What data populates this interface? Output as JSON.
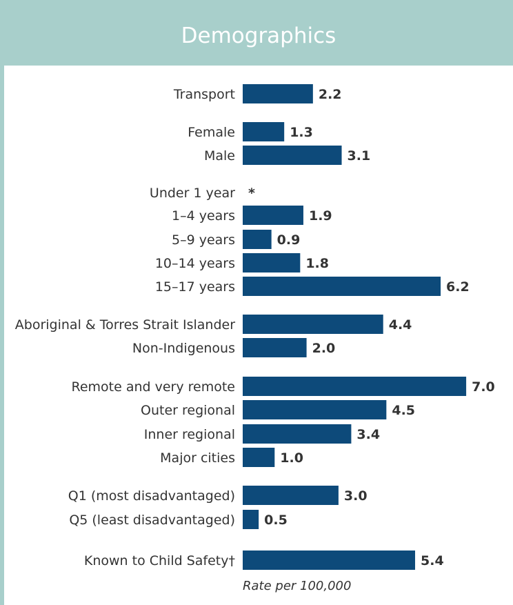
{
  "header": {
    "title": "Demographics"
  },
  "chart_data": {
    "type": "bar",
    "orientation": "horizontal",
    "title": "Demographics",
    "xlabel": "Rate per 100,000",
    "xlim": [
      0,
      7.0
    ],
    "grid": false,
    "bar_color": "#0d4a7a",
    "categories": [
      "Transport",
      "Female",
      "Male",
      "Under 1 year",
      "1–4 years",
      "5–9 years",
      "10–14 years",
      "15–17 years",
      "Aboriginal & Torres Strait Islander",
      "Non-Indigenous",
      "Remote and very remote",
      "Outer regional",
      "Inner regional",
      "Major cities",
      "Q1 (most disadvantaged)",
      "Q5 (least disadvantaged)",
      "Known to Child Safety†"
    ],
    "values": [
      2.2,
      1.3,
      3.1,
      null,
      1.9,
      0.9,
      1.8,
      6.2,
      4.4,
      2.0,
      7.0,
      4.5,
      3.4,
      1.0,
      3.0,
      0.5,
      5.4
    ],
    "value_labels": [
      "2.2",
      "1.3",
      "3.1",
      "*",
      "1.9",
      "0.9",
      "1.8",
      "6.2",
      "4.4",
      "2.0",
      "7.0",
      "4.5",
      "3.4",
      "1.0",
      "3.0",
      "0.5",
      "5.4"
    ]
  }
}
